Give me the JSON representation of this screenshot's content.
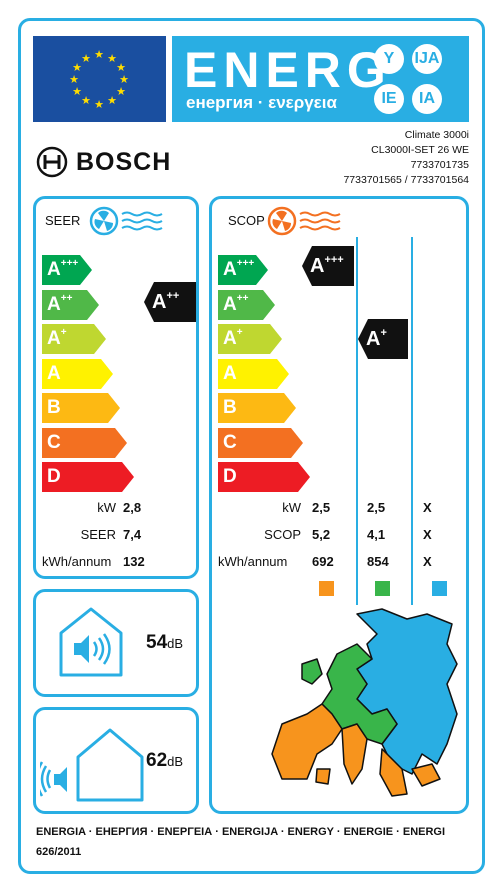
{
  "header": {
    "title": "ENERG",
    "subtitle": "енергия · ενεργεια",
    "suffixes": [
      "Y",
      "IJA",
      "IE",
      "IA"
    ],
    "colors": {
      "blue": "#29aee3",
      "eu_blue": "#1a4fa0",
      "star": "#ffdd00"
    }
  },
  "brand": {
    "name": "BOSCH",
    "logo_icon": "bosch-armature-icon"
  },
  "model": {
    "line1": "Climate 3000i",
    "line2": "CL3000I-SET 26 WE",
    "line3": "7733701735",
    "line4": "7733701565 / 7733701564"
  },
  "scale": [
    {
      "base": "A",
      "sup": "+++",
      "color": "#00a651"
    },
    {
      "base": "A",
      "sup": "++",
      "color": "#50b848"
    },
    {
      "base": "A",
      "sup": "+",
      "color": "#bfd730"
    },
    {
      "base": "A",
      "sup": "",
      "color": "#fff200"
    },
    {
      "base": "B",
      "sup": "",
      "color": "#fdb913"
    },
    {
      "base": "C",
      "sup": "",
      "color": "#f37021"
    },
    {
      "base": "D",
      "sup": "",
      "color": "#ed1c24"
    }
  ],
  "seer": {
    "title": "SEER",
    "icon": "cooling-fan-icon",
    "rating": {
      "base": "A",
      "sup": "++"
    },
    "labels": {
      "kw": "kW",
      "seer": "SEER",
      "annual": "kWh/annum"
    },
    "values": {
      "kw": "2,8",
      "seer": "7,4",
      "annual": "132"
    }
  },
  "scop": {
    "title": "SCOP",
    "icon": "heating-fan-icon",
    "rating_warmer": {
      "base": "A",
      "sup": "+++"
    },
    "rating_average": {
      "base": "A",
      "sup": "+"
    },
    "labels": {
      "kw": "kW",
      "scop": "SCOP",
      "annual": "kWh/annum"
    },
    "columns": [
      {
        "kw": "2,5",
        "scop": "5,2",
        "annual": "692",
        "color": "#f7941d"
      },
      {
        "kw": "2,5",
        "scop": "4,1",
        "annual": "854",
        "color": "#39b54a"
      },
      {
        "kw": "X",
        "scop": "X",
        "annual": "X",
        "color": "#29aee3"
      }
    ]
  },
  "noise_indoor": {
    "value": "54",
    "unit": "dB",
    "icon": "indoor-noise-icon"
  },
  "noise_outdoor": {
    "value": "62",
    "unit": "dB",
    "icon": "outdoor-noise-icon"
  },
  "map": {
    "icon": "europe-climate-map-icon"
  },
  "footer": {
    "languages": "ENERGIA · ЕНЕРГИЯ · ΕΝΕΡΓΕΙΑ · ENERGIJA · ENERGY · ENERGIE · ENERGI",
    "regulation": "626/2011"
  }
}
